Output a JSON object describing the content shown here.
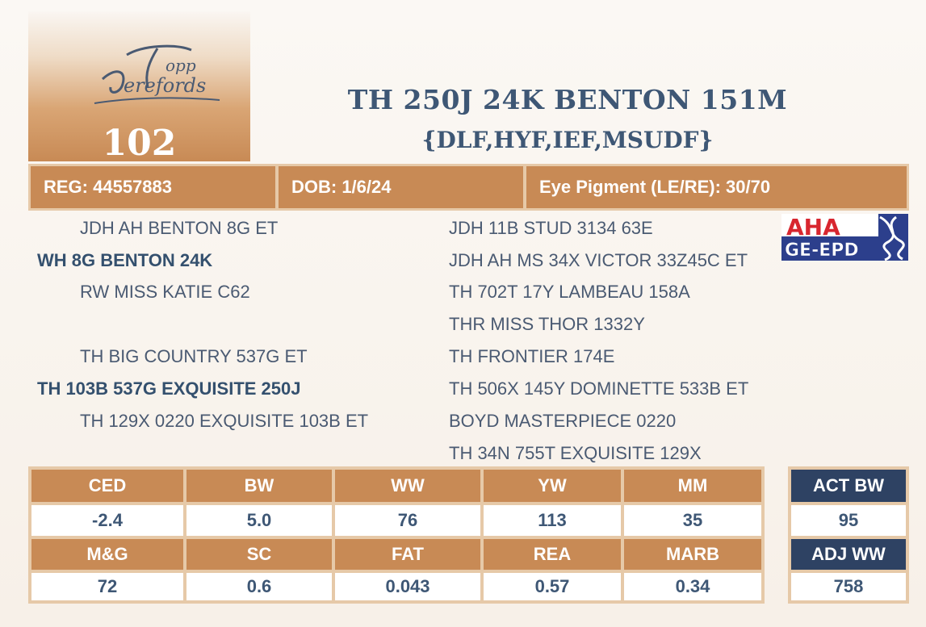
{
  "logo": {
    "text_line1": "Topp",
    "text_line2": "Herefords"
  },
  "lot_number": "102",
  "title": "TH 250J 24K BENTON 151M",
  "designations": "{DLF,HYF,IEF,MSUDF}",
  "info": {
    "reg": "REG: 44557883",
    "dob": "DOB: 1/6/24",
    "eye": "Eye Pigment (LE/RE): 30/70"
  },
  "pedigree": {
    "sire_sire": "JDH AH BENTON 8G ET",
    "sire": "WH 8G BENTON 24K",
    "sire_dam": "RW MISS KATIE C62",
    "dam_sire": "TH BIG COUNTRY 537G ET",
    "dam": "TH 103B 537G EXQUISITE 250J",
    "dam_dam": "TH 129X 0220 EXQUISITE 103B ET",
    "right": [
      "JDH 11B STUD 3134 63E",
      "JDH AH MS 34X VICTOR 33Z45C ET",
      "TH 702T 17Y LAMBEAU 158A",
      "THR MISS THOR 1332Y",
      "TH FRONTIER 174E",
      "TH 506X 145Y DOMINETTE 533B ET",
      "BOYD MASTERPIECE 0220",
      "TH 34N 755T EXQUISITE 129X"
    ]
  },
  "badge": {
    "line1": "AHA",
    "line2": "GE-EPD"
  },
  "epd": {
    "row1_headers": [
      "CED",
      "BW",
      "WW",
      "YW",
      "MM"
    ],
    "row1_values": [
      "-2.4",
      "5.0",
      "76",
      "113",
      "35"
    ],
    "row2_headers": [
      "M&G",
      "SC",
      "FAT",
      "REA",
      "MARB"
    ],
    "row2_values": [
      "72",
      "0.6",
      "0.043",
      "0.57",
      "0.34"
    ]
  },
  "actuals": {
    "act_bw_label": "ACT BW",
    "act_bw_value": "95",
    "adj_ww_label": "ADJ WW",
    "adj_ww_value": "758"
  },
  "colors": {
    "accent": "#c88a55",
    "navy": "#3e5775",
    "dark_navy": "#2e4263",
    "border": "#e6c9a8"
  }
}
